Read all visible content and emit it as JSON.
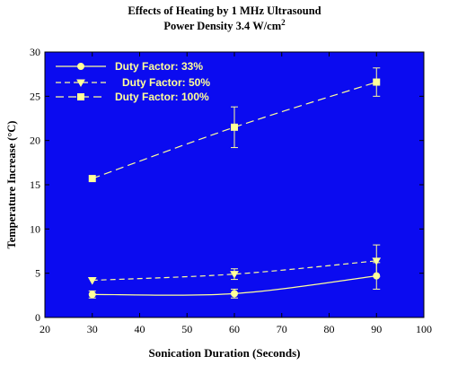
{
  "title_line1": "Effects of Heating by 1 MHz Ultrasound",
  "title_line2": "Power Density 3.4 W/cm",
  "title_sup": "2",
  "colors": {
    "plot_bg": "#0b0bf0",
    "series": "#ffff99",
    "axis": "#000000"
  },
  "chart_data": {
    "type": "line",
    "xlabel": "Sonication Duration (Seconds)",
    "ylabel": "Temperature Increase (°C)",
    "xlim": [
      20,
      100
    ],
    "ylim": [
      0,
      30
    ],
    "xticks": [
      20,
      30,
      40,
      50,
      60,
      70,
      80,
      90,
      100
    ],
    "yticks": [
      0,
      5,
      10,
      15,
      20,
      25,
      30
    ],
    "legend_position": "top-left",
    "series": [
      {
        "name": "Duty Factor: 33%",
        "marker": "circle",
        "dash": "solid",
        "x": [
          30,
          60,
          90
        ],
        "y": [
          2.6,
          2.7,
          4.7
        ],
        "err": [
          0.4,
          0.5,
          1.5
        ]
      },
      {
        "name": "Duty Factor: 50%",
        "marker": "triangle-down",
        "dash": "dashed",
        "x": [
          30,
          60,
          90
        ],
        "y": [
          4.2,
          4.9,
          6.4
        ],
        "err": [
          0,
          0.6,
          1.8
        ]
      },
      {
        "name": "Duty Factor: 100%",
        "marker": "square",
        "dash": "long-dashed",
        "x": [
          30,
          60,
          90
        ],
        "y": [
          15.7,
          21.5,
          26.6
        ],
        "err": [
          0,
          2.3,
          1.6
        ]
      }
    ]
  }
}
